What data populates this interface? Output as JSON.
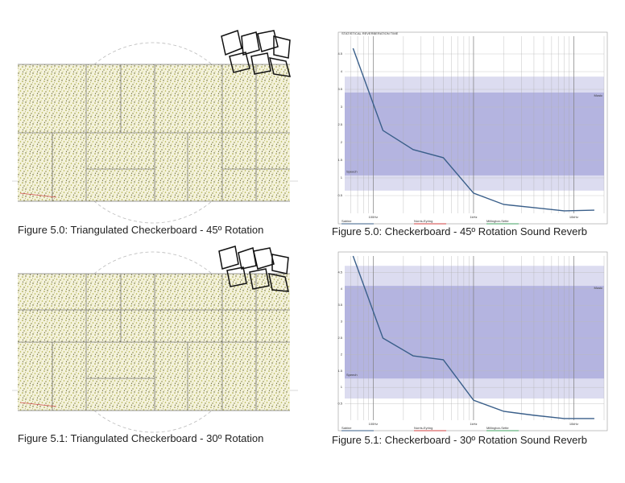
{
  "figures": [
    {
      "caption": "Figure 5.0: Triangulated Checkerboard - 45º Rotation"
    },
    {
      "caption": "Figure 5.1: Triangulated Checkerboard - 30º Rotation"
    }
  ],
  "chart_data": [
    {
      "type": "line",
      "title": "STATISTICAL REVERBERATION TIME",
      "caption": "Figure 5.0: Checkerboard - 45º Rotation Sound Reverb",
      "x": [
        63,
        125,
        250,
        500,
        1000,
        2000,
        4000,
        8000,
        16000
      ],
      "series": [
        {
          "name": "Sabine",
          "color": "#3a5f8a",
          "values": [
            4.66,
            2.34,
            1.8,
            1.57,
            0.57,
            0.25,
            0.16,
            0.07,
            0.09
          ]
        }
      ],
      "other_legend": [
        {
          "name": "Norris-Eyring",
          "color": "#d04040"
        },
        {
          "name": "Millington-Sette",
          "color": "#40a060"
        }
      ],
      "bands": [
        {
          "range": [
            0.64,
            3.86
          ],
          "color": "#dcdcf0"
        },
        {
          "range": [
            1.07,
            3.41
          ],
          "color": "#b4b4e0"
        }
      ],
      "annotations": [
        {
          "text": "Music",
          "y": 3.3
        },
        {
          "text": "Speech",
          "y": 1.15
        }
      ],
      "xlim": [
        52,
        20000
      ],
      "log_x": true,
      "xticks": [
        {
          "value": 100,
          "label": "100Hz"
        },
        {
          "value": 1000,
          "label": "1kHz"
        },
        {
          "value": 10000,
          "label": "10kHz"
        }
      ],
      "ylim": [
        0,
        5
      ],
      "yticks": [
        0.5,
        1,
        1.5,
        2,
        2.5,
        3,
        3.5,
        4,
        4.5
      ],
      "grid": true
    },
    {
      "type": "line",
      "caption": "Figure 5.1: Checkerboard - 30º Rotation Sound Reverb",
      "x": [
        63,
        125,
        250,
        500,
        1000,
        2000,
        4000,
        8000,
        16000
      ],
      "series": [
        {
          "name": "Sabine",
          "color": "#3a5f8a",
          "values": [
            5.0,
            2.5,
            1.96,
            1.84,
            0.61,
            0.27,
            0.15,
            0.05,
            0.05
          ]
        }
      ],
      "other_legend": [
        {
          "name": "Norris-Eyring",
          "color": "#d04040"
        },
        {
          "name": "Millington-Sette",
          "color": "#40a060"
        }
      ],
      "bands": [
        {
          "range": [
            0.66,
            4.7
          ],
          "color": "#dcdcf0"
        },
        {
          "range": [
            1.27,
            4.09
          ],
          "color": "#b4b4e0"
        }
      ],
      "annotations": [
        {
          "text": "Music",
          "y": 4.0
        },
        {
          "text": "Speech",
          "y": 1.35
        }
      ],
      "xlim": [
        52,
        20000
      ],
      "log_x": true,
      "xticks": [
        {
          "value": 100,
          "label": "100Hz"
        },
        {
          "value": 1000,
          "label": "1kHz"
        },
        {
          "value": 10000,
          "label": "10kHz"
        }
      ],
      "ylim": [
        0,
        5
      ],
      "yticks": [
        0.5,
        1,
        1.5,
        2,
        2.5,
        3,
        3.5,
        4,
        4.5
      ],
      "grid": true
    }
  ]
}
